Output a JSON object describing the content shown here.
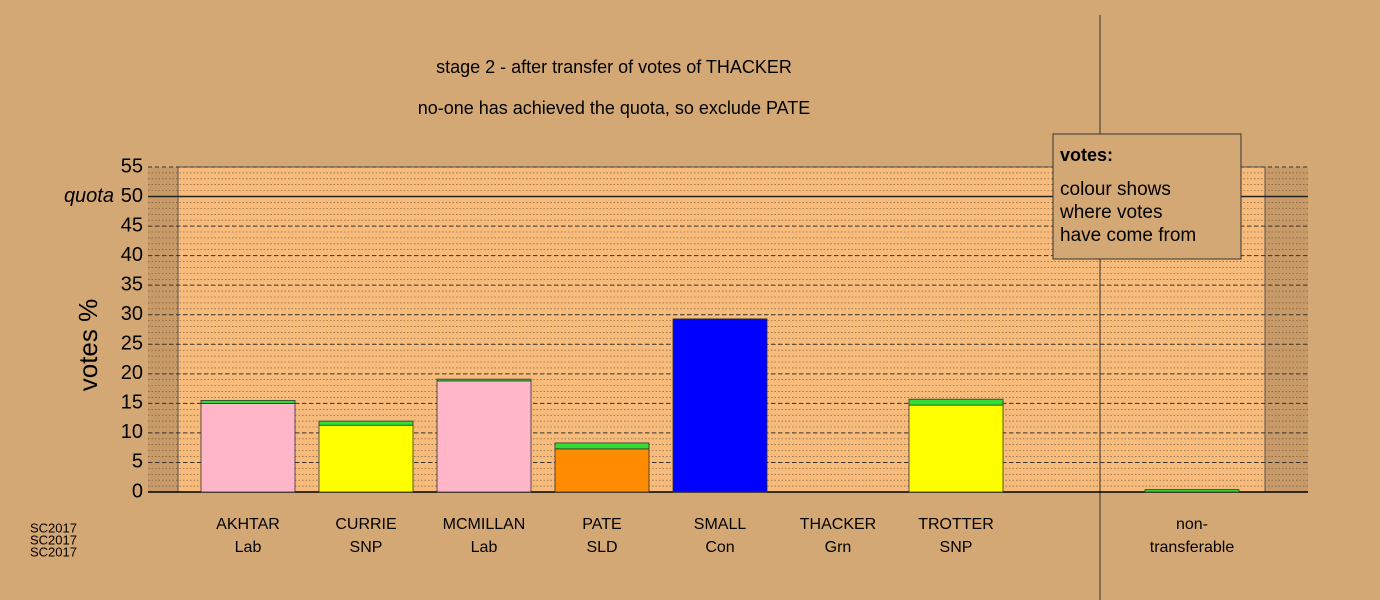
{
  "chart_data": {
    "type": "stacked-bar",
    "title": "stage 2 - after transfer of votes of THACKER",
    "subtitle": "no-one has achieved the quota, so exclude PATE",
    "y_label": "votes %",
    "categories": [
      [
        "AKHTAR",
        "Lab"
      ],
      [
        "CURRIE",
        "SNP"
      ],
      [
        "MCMILLAN",
        "Lab"
      ],
      [
        "PATE",
        "SLD"
      ],
      [
        "SMALL",
        "Con"
      ],
      [
        "THACKER",
        "Grn"
      ],
      [
        "TROTTER",
        "SNP"
      ],
      null,
      [
        "non-",
        "transferable"
      ]
    ],
    "series": [
      {
        "colors": [
          "#ffb6c8",
          "#ffff00",
          "#ffb6c8",
          "#ff8c00",
          "#0000ff",
          "#33dd33",
          "#ffff00",
          null,
          "#33dd33"
        ],
        "values": [
          15.0,
          11.3,
          18.8,
          7.3,
          29.3,
          0,
          14.7,
          null,
          0
        ]
      },
      {
        "colors": [
          "#33dd33",
          "#33dd33",
          "#33dd33",
          "#33dd33",
          "#33dd33",
          "#33dd33",
          "#33dd33",
          null,
          "#33dd33"
        ],
        "values": [
          0.5,
          0.7,
          0.3,
          1.0,
          0,
          0,
          1.0,
          null,
          0.4
        ]
      }
    ],
    "ylim": [
      0,
      55
    ],
    "yticks": [
      0,
      5,
      10,
      15,
      20,
      25,
      30,
      35,
      40,
      45,
      {
        "value": 50,
        "label": "quota"
      },
      55
    ],
    "quota": 50,
    "grid": true,
    "legend": {
      "title": "votes:",
      "lines": [
        "colour shows",
        "where votes",
        "have come from"
      ]
    },
    "footer": [
      "SC2017",
      "SC2017",
      "SC2017"
    ]
  }
}
